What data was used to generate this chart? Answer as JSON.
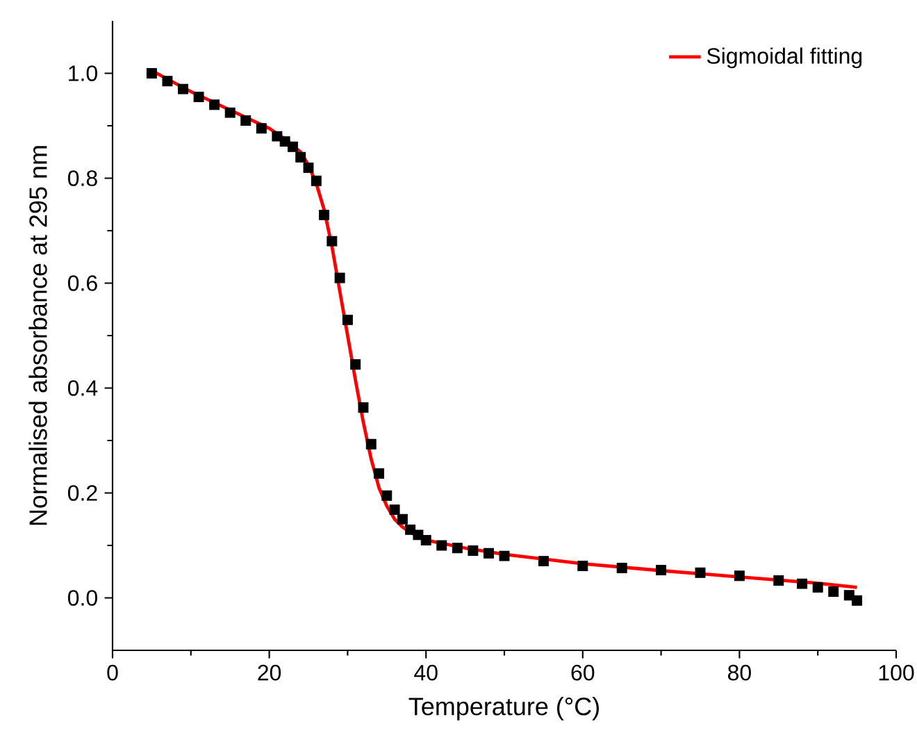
{
  "chart_data": {
    "type": "scatter",
    "xlabel": "Temperature (°C)",
    "ylabel": "Normalised absorbance at 295 nm",
    "xlim": [
      0,
      100
    ],
    "ylim": [
      -0.1,
      1.1
    ],
    "xticks": [
      0,
      20,
      40,
      60,
      80,
      100
    ],
    "yticks": [
      {
        "value": 0,
        "label": "0.0"
      },
      0.2,
      0.4,
      0.6,
      0.8,
      {
        "value": 1,
        "label": "1.0"
      }
    ],
    "grid": false,
    "legend": "top right",
    "series": [
      {
        "marker": "square",
        "color": "#000000",
        "x": [
          5,
          7,
          9,
          11,
          13,
          15,
          17,
          19,
          21,
          22,
          23,
          24,
          25,
          26,
          27,
          28,
          29,
          30,
          31,
          32,
          33,
          34,
          35,
          36,
          37,
          38,
          39,
          40,
          42,
          44,
          46,
          48,
          50,
          55,
          60,
          65,
          70,
          75,
          80,
          85,
          88,
          90,
          92,
          94,
          95
        ],
        "values": [
          1.0,
          0.985,
          0.97,
          0.955,
          0.94,
          0.925,
          0.91,
          0.895,
          0.88,
          0.87,
          0.86,
          0.84,
          0.82,
          0.795,
          0.73,
          0.68,
          0.61,
          0.53,
          0.445,
          0.363,
          0.293,
          0.237,
          0.195,
          0.168,
          0.15,
          0.13,
          0.12,
          0.11,
          0.1,
          0.095,
          0.09,
          0.085,
          0.08,
          0.07,
          0.061,
          0.057,
          0.053,
          0.048,
          0.042,
          0.033,
          0.027,
          0.02,
          0.012,
          0.005,
          -0.005
        ]
      },
      {
        "type": "line",
        "name": "Sigmoidal fitting",
        "marker": "none",
        "color": "#ff0000",
        "x": [
          5,
          10,
          15,
          20,
          22,
          24,
          25,
          26,
          27,
          28,
          29,
          30,
          31,
          32,
          33,
          34,
          35,
          36,
          37,
          38,
          40,
          45,
          50,
          60,
          70,
          80,
          90,
          95
        ],
        "values": [
          1.005,
          0.965,
          0.93,
          0.895,
          0.875,
          0.85,
          0.825,
          0.79,
          0.74,
          0.67,
          0.585,
          0.5,
          0.415,
          0.335,
          0.265,
          0.21,
          0.175,
          0.15,
          0.135,
          0.125,
          0.11,
          0.095,
          0.083,
          0.065,
          0.052,
          0.04,
          0.028,
          0.02
        ]
      }
    ]
  }
}
